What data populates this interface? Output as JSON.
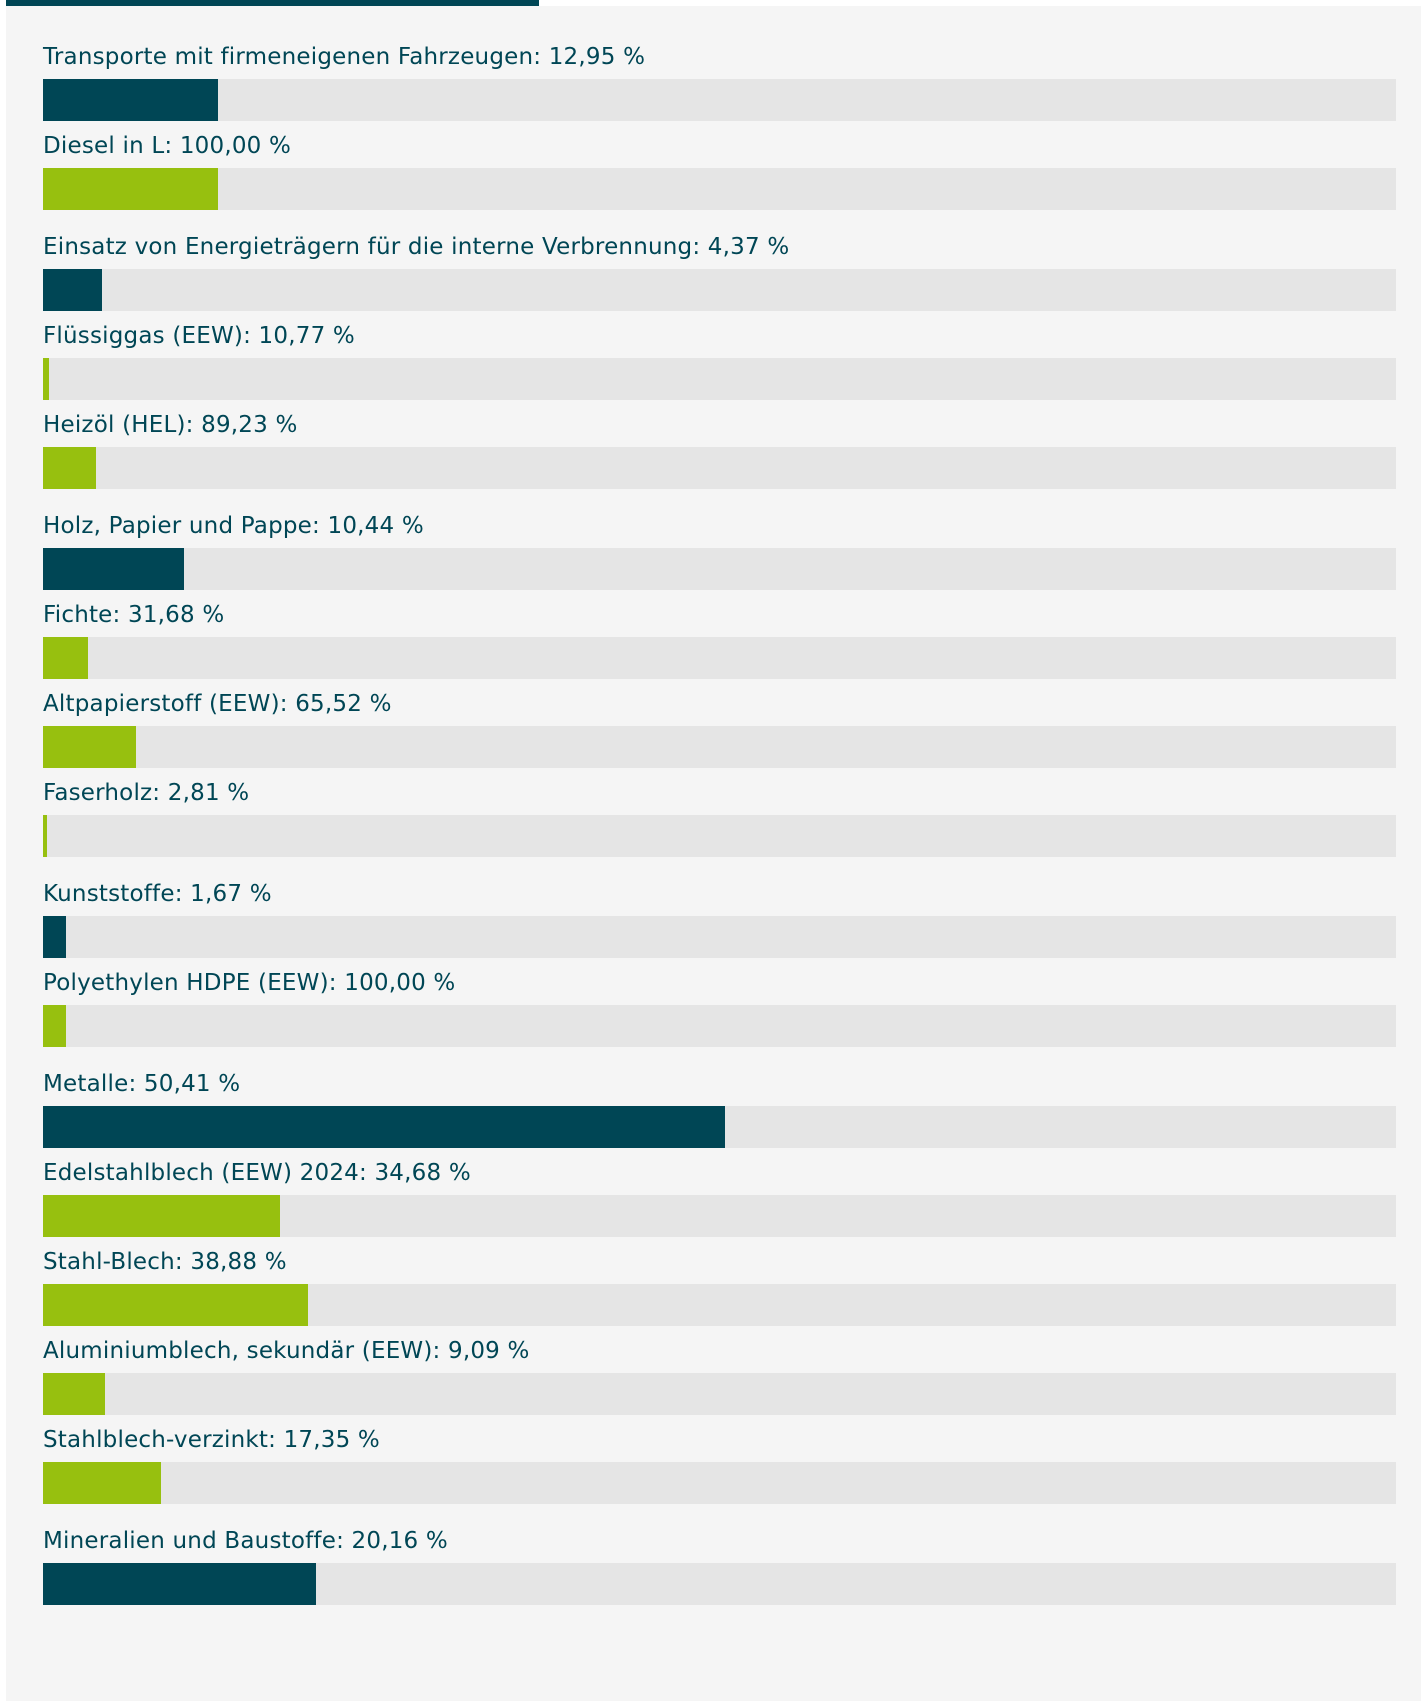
{
  "colors": {
    "category": "#004655",
    "sub": "#97c00f",
    "track": "#e5e5e5",
    "background": "#f5f5f5"
  },
  "chart_data": {
    "type": "bar",
    "orientation": "horizontal",
    "xlim": [
      0,
      100
    ],
    "groups": [
      {
        "label": "Transporte mit firmeneigenen Fahrzeugen: 12,95 %",
        "value": 12.95,
        "items": [
          {
            "label": "Diesel in L: 100,00 %",
            "value": 100.0
          }
        ]
      },
      {
        "label": "Einsatz von Energieträgern für die interne Verbrennung: 4,37 %",
        "value": 4.37,
        "items": [
          {
            "label": "Flüssiggas (EEW): 10,77 %",
            "value": 10.77
          },
          {
            "label": "Heizöl (HEL): 89,23 %",
            "value": 89.23
          }
        ]
      },
      {
        "label": "Holz, Papier und Pappe: 10,44 %",
        "value": 10.44,
        "items": [
          {
            "label": "Fichte: 31,68 %",
            "value": 31.68
          },
          {
            "label": "Altpapierstoff (EEW): 65,52 %",
            "value": 65.52
          },
          {
            "label": "Faserholz: 2,81 %",
            "value": 2.81
          }
        ]
      },
      {
        "label": "Kunststoffe: 1,67 %",
        "value": 1.67,
        "items": [
          {
            "label": "Polyethylen HDPE (EEW): 100,00 %",
            "value": 100.0
          }
        ]
      },
      {
        "label": "Metalle: 50,41 %",
        "value": 50.41,
        "items": [
          {
            "label": "Edelstahlblech (EEW) 2024: 34,68 %",
            "value": 34.68
          },
          {
            "label": "Stahl-Blech: 38,88 %",
            "value": 38.88
          },
          {
            "label": "Aluminiumblech, sekundär (EEW): 9,09 %",
            "value": 9.09
          },
          {
            "label": "Stahlblech-verzinkt: 17,35 %",
            "value": 17.35
          }
        ]
      },
      {
        "label": "Mineralien und Baustoffe: 20,16 %",
        "value": 20.16,
        "items": []
      }
    ]
  }
}
